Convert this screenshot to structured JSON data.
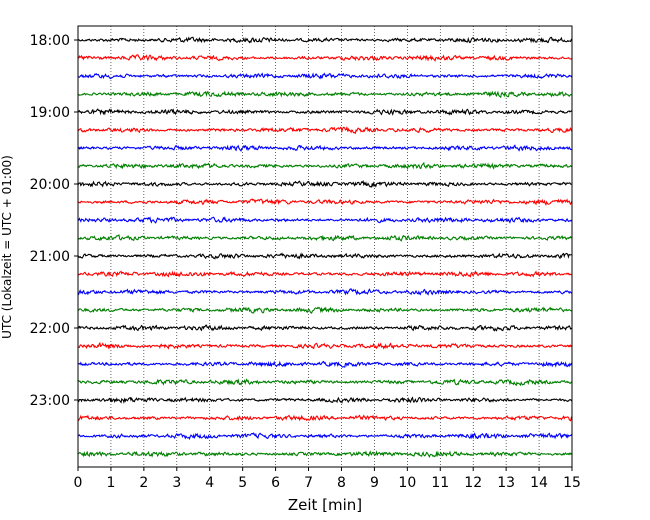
{
  "chart_data": {
    "type": "line",
    "title": "",
    "xlabel": "Zeit  [min]",
    "ylabel": "UTC (Lokalzeit = UTC + 01:00)",
    "xlim": [
      0,
      15
    ],
    "x_ticks": [
      0,
      1,
      2,
      3,
      4,
      5,
      6,
      7,
      8,
      9,
      10,
      11,
      12,
      13,
      14,
      15
    ],
    "x_grid": "dotted vertical lines at each minute",
    "traces_per_hour": 4,
    "trace_minutes": 15,
    "y_tick_labels": [
      "18:00",
      "19:00",
      "20:00",
      "21:00",
      "22:00",
      "23:00"
    ],
    "trace_start_times": [
      "18:00",
      "18:15",
      "18:30",
      "18:45",
      "19:00",
      "19:15",
      "19:30",
      "19:45",
      "20:00",
      "20:15",
      "20:30",
      "20:45",
      "21:00",
      "21:15",
      "21:30",
      "21:45",
      "22:00",
      "22:15",
      "22:30",
      "22:45",
      "23:00",
      "23:15",
      "23:30",
      "23:45"
    ],
    "trace_colors": [
      "#000000",
      "#ff0000",
      "#0000ff",
      "#008000"
    ],
    "signal": "continuous seismogram noise, no distinct events"
  }
}
